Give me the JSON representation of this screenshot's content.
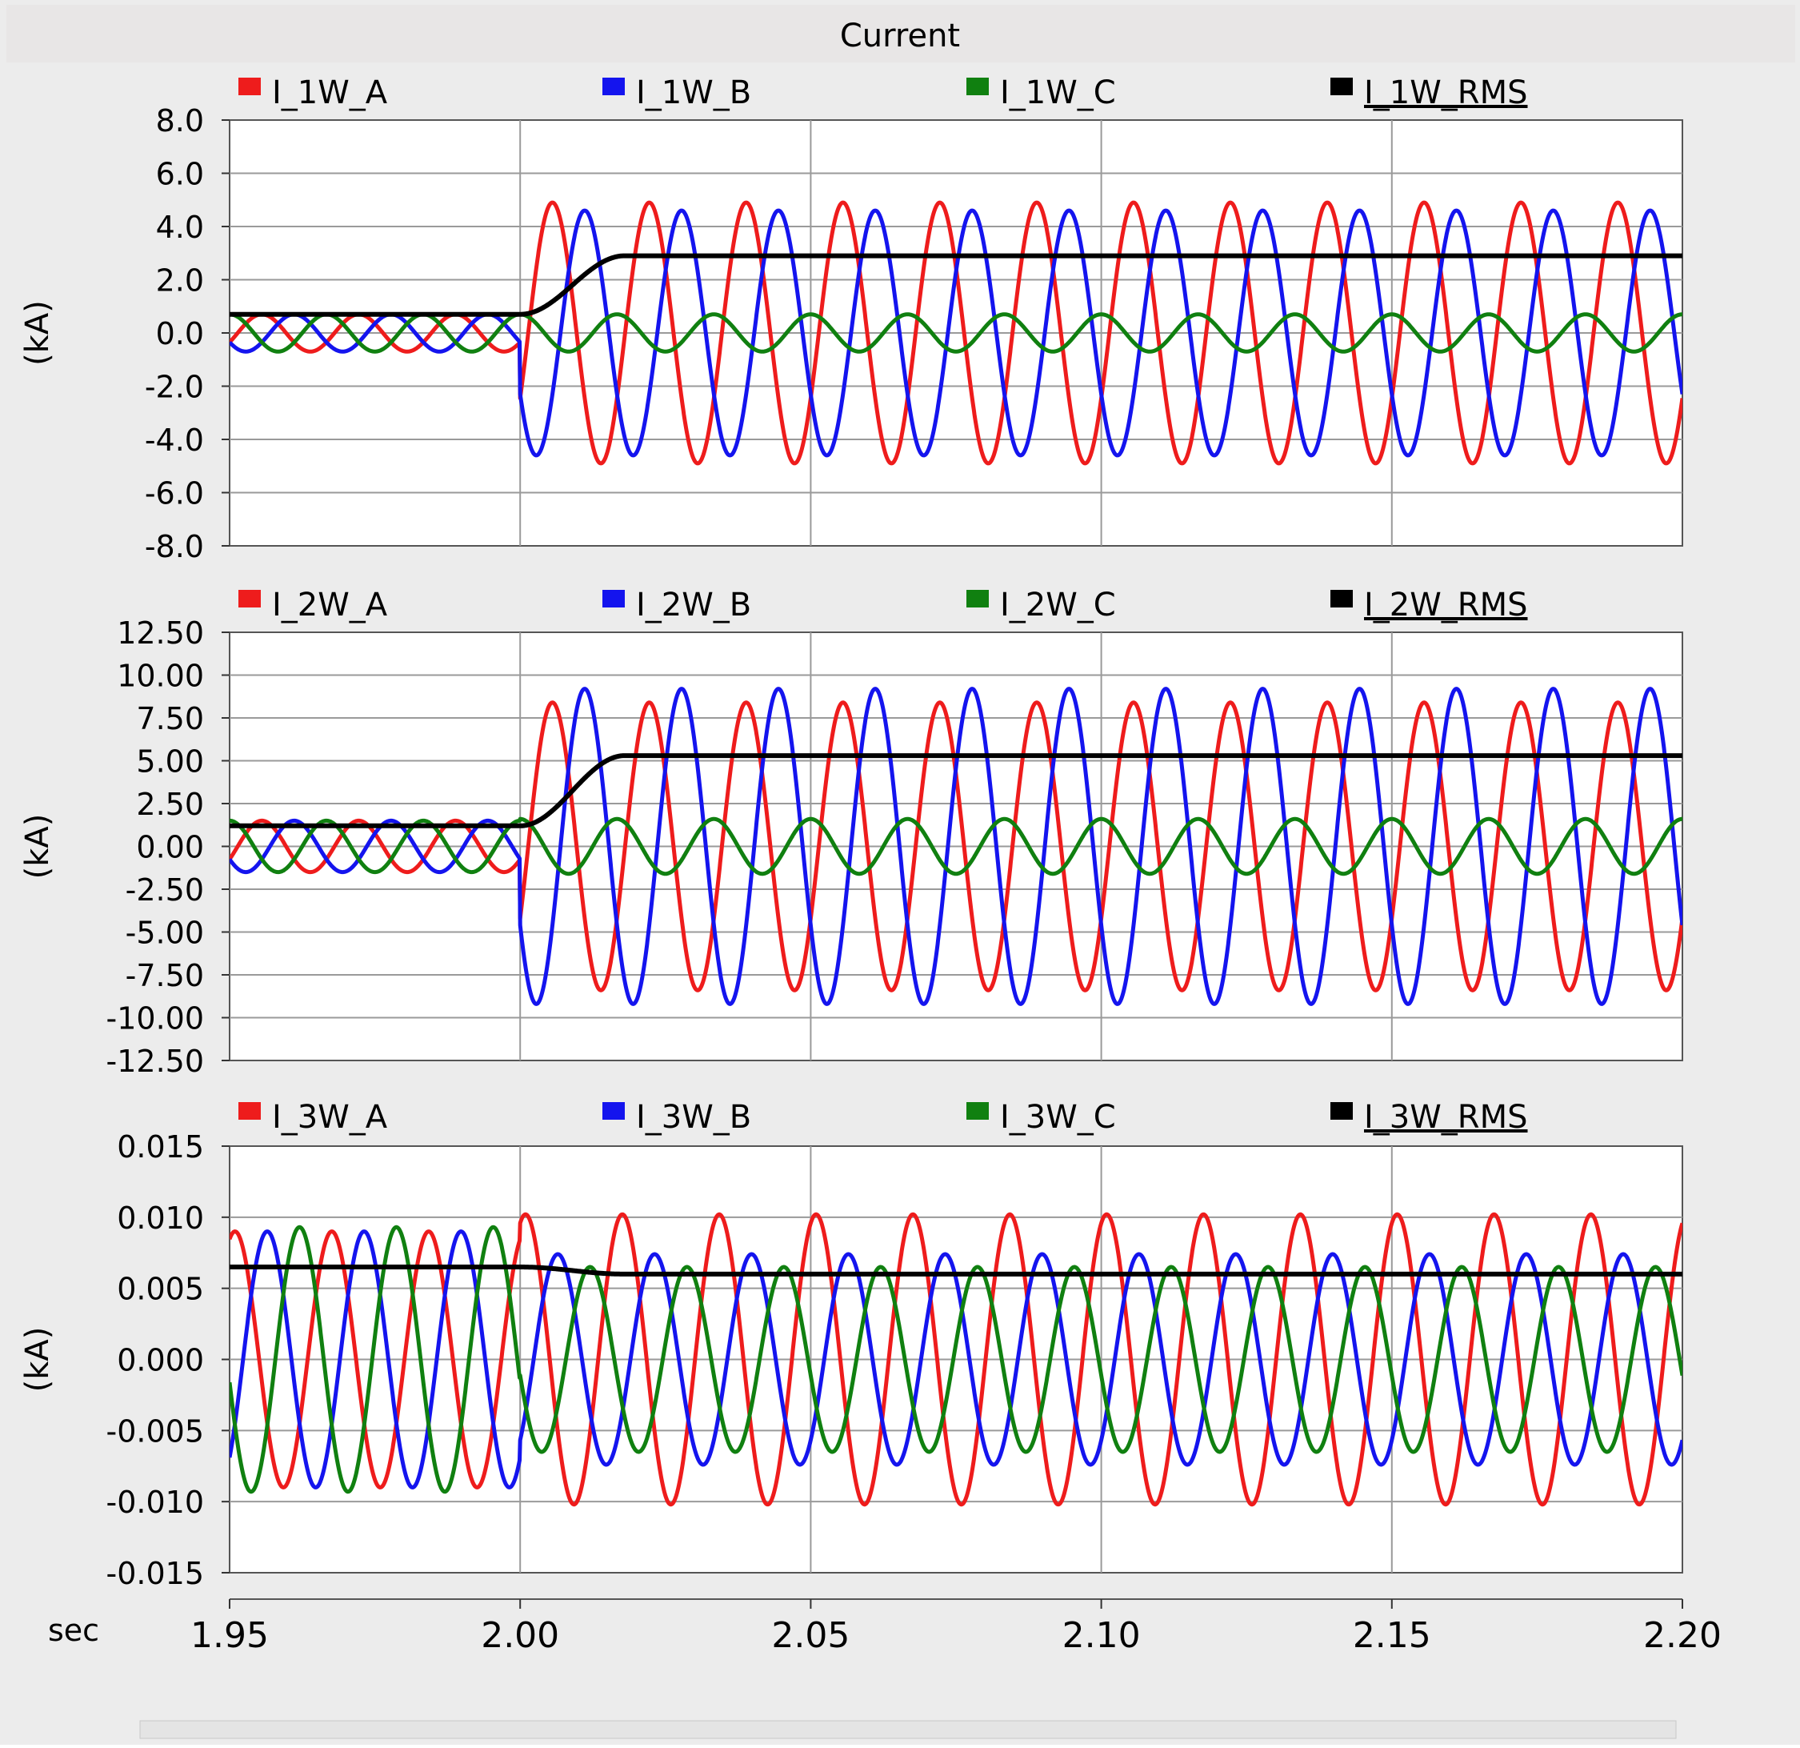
{
  "window": {
    "title": "Current"
  },
  "x_axis": {
    "label": "sec",
    "ticks": [
      "1.95",
      "2.00",
      "2.05",
      "2.10",
      "2.15",
      "2.20"
    ],
    "range": [
      1.95,
      2.2
    ]
  },
  "colors": {
    "a": "#ee1c1c",
    "b": "#1414ee",
    "c": "#108010",
    "rms": "#000000",
    "background": "#ececec",
    "plot": "#ffffff",
    "grid": "#9a9a9a",
    "title_bar": "#e8e6e6"
  },
  "chart_data": [
    {
      "type": "line",
      "ylabel": "(kA)",
      "ylim": [
        -8.0,
        8.0
      ],
      "y_ticks": [
        "8.0",
        "6.0",
        "4.0",
        "2.0",
        "0.0",
        "-2.0",
        "-4.0",
        "-6.0",
        "-8.0"
      ],
      "legend": [
        "I_1W_A",
        "I_1W_B",
        "I_1W_C",
        "I_1W_RMS"
      ],
      "frequency_hz": 60,
      "fault_time": 2.0,
      "series": [
        {
          "name": "I_1W_A",
          "color_key": "a",
          "pre_amp": 0.7,
          "post_amp": 4.9,
          "phase_deg": -30
        },
        {
          "name": "I_1W_B",
          "color_key": "b",
          "pre_amp": 0.7,
          "post_amp": 4.6,
          "phase_deg": -150
        },
        {
          "name": "I_1W_C",
          "color_key": "c",
          "pre_amp": 0.7,
          "post_amp": 0.7,
          "phase_deg": 90
        },
        {
          "name": "I_1W_RMS",
          "color_key": "rms",
          "pre_level": 0.7,
          "post_level": 2.9
        }
      ]
    },
    {
      "type": "line",
      "ylabel": "(kA)",
      "ylim": [
        -12.5,
        12.5
      ],
      "y_ticks": [
        "12.50",
        "10.00",
        "7.50",
        "5.00",
        "2.50",
        "0.00",
        "-2.50",
        "-5.00",
        "-7.50",
        "-10.00",
        "-12.50"
      ],
      "legend": [
        "I_2W_A",
        "I_2W_B",
        "I_2W_C",
        "I_2W_RMS"
      ],
      "frequency_hz": 60,
      "fault_time": 2.0,
      "series": [
        {
          "name": "I_2W_A",
          "color_key": "a",
          "pre_amp": 1.5,
          "post_amp": 8.4,
          "phase_deg": -30
        },
        {
          "name": "I_2W_B",
          "color_key": "b",
          "pre_amp": 1.5,
          "post_amp": 9.2,
          "phase_deg": -150
        },
        {
          "name": "I_2W_C",
          "color_key": "c",
          "pre_amp": 1.5,
          "post_amp": 1.6,
          "phase_deg": 90
        },
        {
          "name": "I_2W_RMS",
          "color_key": "rms",
          "pre_level": 1.2,
          "post_level": 5.3
        }
      ]
    },
    {
      "type": "line",
      "ylabel": "(kA)",
      "ylim": [
        -0.015,
        0.015
      ],
      "y_ticks": [
        "0.015",
        "0.010",
        "0.005",
        "0.000",
        "-0.005",
        "-0.010",
        "-0.015"
      ],
      "legend": [
        "I_3W_A",
        "I_3W_B",
        "I_3W_C",
        "I_3W_RMS"
      ],
      "frequency_hz": 60,
      "fault_time": 2.0,
      "series": [
        {
          "name": "I_3W_A",
          "color_key": "a",
          "pre_amp": 0.009,
          "post_amp": 0.0102,
          "phase_deg": 70
        },
        {
          "name": "I_3W_B",
          "color_key": "b",
          "pre_amp": 0.009,
          "post_amp": 0.0074,
          "phase_deg": -50
        },
        {
          "name": "I_3W_C",
          "color_key": "c",
          "pre_amp": 0.0093,
          "post_amp": 0.0065,
          "phase_deg": 190
        },
        {
          "name": "I_3W_RMS",
          "color_key": "rms",
          "pre_level": 0.0065,
          "post_level": 0.006
        }
      ]
    }
  ]
}
